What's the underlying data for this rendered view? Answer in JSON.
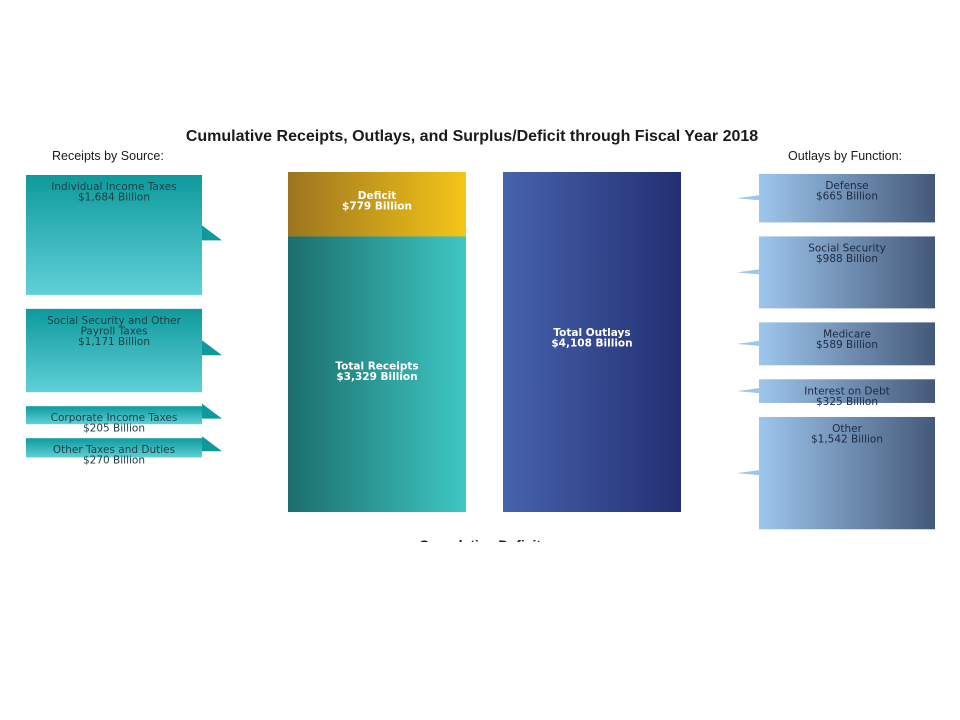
{
  "chart_data": {
    "type": "bar",
    "title": "Cumulative Receipts, Outlays, and Surplus/Deficit through Fiscal Year 2018",
    "receipts_heading": "Receipts by Source:",
    "outlays_heading": "Outlays by Function:",
    "receipts": [
      {
        "lines": [
          "Individual Income Taxes",
          "$1,684 Billion"
        ],
        "value": 1684
      },
      {
        "lines": [
          "Social Security and Other",
          "Payroll Taxes",
          "$1,171 Billion"
        ],
        "value": 1171
      },
      {
        "lines": [
          "Corporate Income Taxes",
          "$205 Billion"
        ],
        "value": 205
      },
      {
        "lines": [
          "Other Taxes and Duties",
          "$270 Billion"
        ],
        "value": 270
      }
    ],
    "totals": {
      "deficit": {
        "lines": [
          "Deficit",
          "$779 Billion"
        ],
        "value": 779
      },
      "receipts": {
        "lines": [
          "Total Receipts",
          "$3,329 Billion"
        ],
        "value": 3329
      },
      "outlays": {
        "lines": [
          "Total Outlays",
          "$4,108 Billion"
        ],
        "value": 4108
      }
    },
    "outlays": [
      {
        "lines": [
          "Defense",
          "$665 Billion"
        ],
        "value": 665
      },
      {
        "lines": [
          "Social Security",
          "$988 Billion"
        ],
        "value": 988
      },
      {
        "lines": [
          "Medicare",
          "$589 Billion"
        ],
        "value": 589
      },
      {
        "lines": [
          "Interest on Debt",
          "$325 Billion"
        ],
        "value": 325
      },
      {
        "lines": [
          "Other",
          "$1,542 Billion"
        ],
        "value": 1542
      }
    ],
    "footer": "Cumulative Deficit",
    "colors": {
      "receipts_top": "#0e9a9c",
      "receipts_bottom": "#5fd0d8",
      "deficit_left": "#9c7420",
      "deficit_right": "#f5c518",
      "total_receipts_left": "#1b6e6b",
      "total_receipts_right": "#3ec7c4",
      "outlays_left": "#4663ad",
      "outlays_right": "#232f72",
      "outlay_left": "#9ec6ec",
      "outlay_right": "#44597a"
    }
  }
}
